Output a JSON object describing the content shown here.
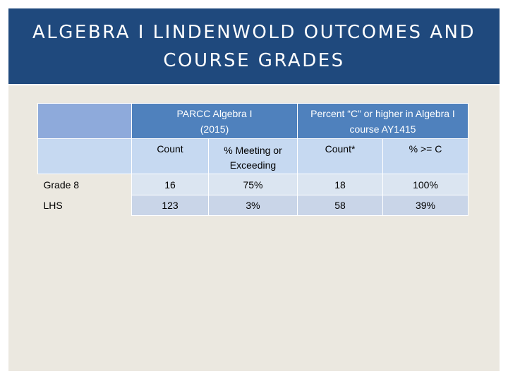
{
  "slide": {
    "title": "ALGEBRA I LINDENWOLD OUTCOMES AND COURSE GRADES"
  },
  "table": {
    "group_headers": {
      "parcc": "PARCC Algebra I (2015)",
      "course": "Percent “C” or higher in Algebra I course AY1415"
    },
    "sub_headers": [
      "Count",
      "% Meeting or Exceeding",
      "Count*",
      "% >= C"
    ],
    "rows": [
      {
        "label": "Grade 8",
        "values": [
          "16",
          "75%",
          "18",
          "100%"
        ]
      },
      {
        "label": "LHS",
        "values": [
          "123",
          "3%",
          "58",
          "39%"
        ]
      }
    ]
  }
}
